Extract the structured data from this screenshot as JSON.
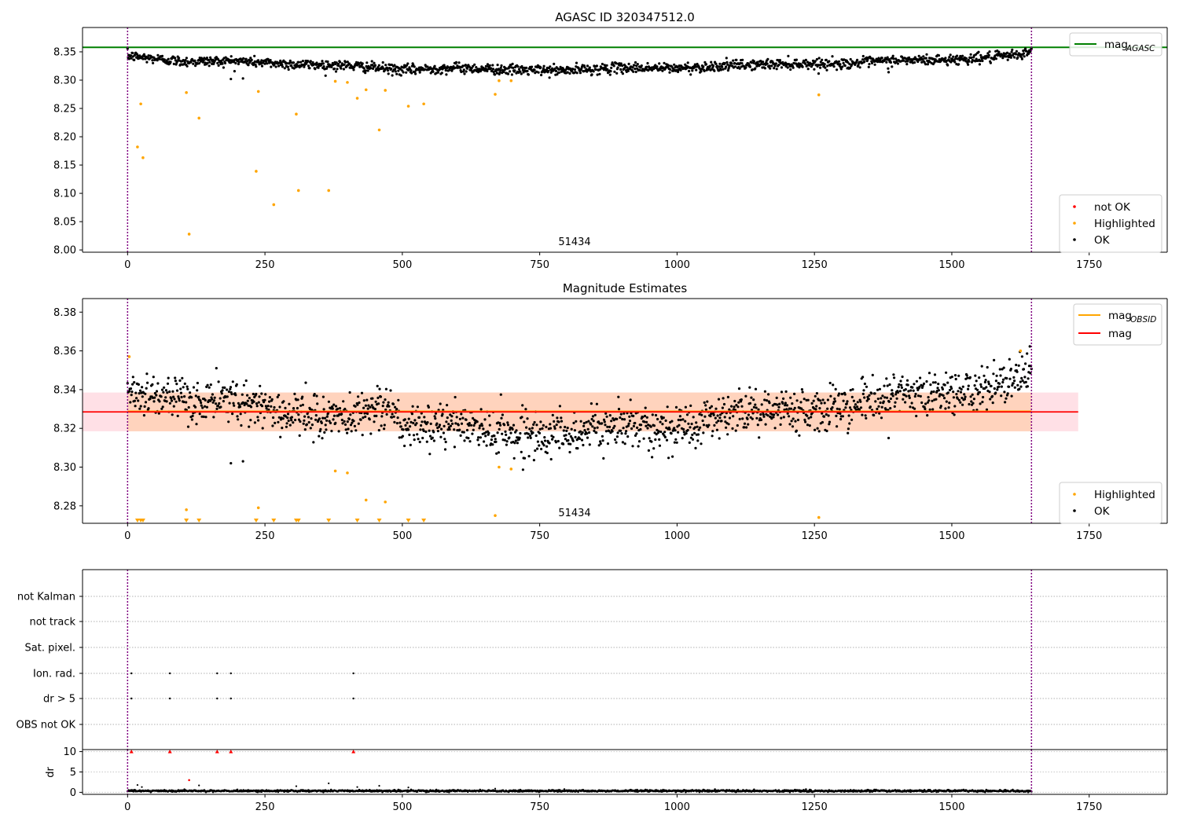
{
  "chart_data": [
    {
      "type": "scatter",
      "title": "AGASC ID 320347512.0",
      "xlim": [
        -82,
        1892
      ],
      "ylim": [
        7.996,
        8.393
      ],
      "x_ticks": [
        0,
        250,
        500,
        750,
        1000,
        1250,
        1500,
        1750
      ],
      "y_ticks": [
        8.0,
        8.05,
        8.1,
        8.15,
        8.2,
        8.25,
        8.3,
        8.35
      ],
      "obsid_label": "51434",
      "obsid_bounds": [
        0,
        1645
      ],
      "reference_line": {
        "name": "mag",
        "subscript": "AGASC",
        "value": 8.358,
        "color": "#008000"
      },
      "legend_lines": [
        {
          "name": "mag",
          "subscript": "AGASC",
          "color": "#008000"
        }
      ],
      "legend_points": [
        {
          "name": "not OK",
          "color": "#ff0000"
        },
        {
          "name": "Highlighted",
          "color": "#ffa500"
        },
        {
          "name": "OK",
          "color": "#000000"
        }
      ],
      "ok_trend": {
        "x": [
          0,
          100,
          200,
          300,
          400,
          500,
          600,
          700,
          800,
          900,
          1000,
          1100,
          1200,
          1300,
          1400,
          1500,
          1600,
          1645
        ],
        "y": [
          8.343,
          8.333,
          8.334,
          8.328,
          8.326,
          8.318,
          8.322,
          8.318,
          8.317,
          8.322,
          8.321,
          8.326,
          8.329,
          8.329,
          8.335,
          8.336,
          8.342,
          8.35
        ],
        "scatter": 0.0045,
        "count": 1640,
        "color": "#000000"
      },
      "ok_outliers": [
        {
          "x": 188,
          "y": 8.302
        },
        {
          "x": 210,
          "y": 8.303
        },
        {
          "x": 1385,
          "y": 8.314
        }
      ],
      "highlighted": [
        {
          "x": 18,
          "y": 8.182
        },
        {
          "x": 24,
          "y": 8.258
        },
        {
          "x": 28,
          "y": 8.163
        },
        {
          "x": 107,
          "y": 8.278
        },
        {
          "x": 112,
          "y": 8.028
        },
        {
          "x": 130,
          "y": 8.233
        },
        {
          "x": 234,
          "y": 8.139
        },
        {
          "x": 238,
          "y": 8.28
        },
        {
          "x": 266,
          "y": 8.08
        },
        {
          "x": 307,
          "y": 8.24
        },
        {
          "x": 311,
          "y": 8.105
        },
        {
          "x": 366,
          "y": 8.105
        },
        {
          "x": 378,
          "y": 8.298
        },
        {
          "x": 400,
          "y": 8.296
        },
        {
          "x": 418,
          "y": 8.268
        },
        {
          "x": 434,
          "y": 8.283
        },
        {
          "x": 458,
          "y": 8.212
        },
        {
          "x": 469,
          "y": 8.282
        },
        {
          "x": 511,
          "y": 8.254
        },
        {
          "x": 539,
          "y": 8.258
        },
        {
          "x": 669,
          "y": 8.275
        },
        {
          "x": 676,
          "y": 8.299
        },
        {
          "x": 698,
          "y": 8.299
        },
        {
          "x": 1258,
          "y": 8.274
        }
      ]
    },
    {
      "type": "scatter",
      "title": "Magnitude Estimates",
      "xlim": [
        -82,
        1892
      ],
      "ylim": [
        8.271,
        8.387
      ],
      "x_ticks": [
        0,
        250,
        500,
        750,
        1000,
        1250,
        1500,
        1750
      ],
      "y_ticks": [
        8.28,
        8.3,
        8.32,
        8.34,
        8.36,
        8.38
      ],
      "obsid_label": "51434",
      "obsid_bounds": [
        0,
        1645
      ],
      "mag_line": {
        "name": "mag",
        "value": 8.3285,
        "band": [
          8.3185,
          8.3385
        ],
        "color": "#ff0000",
        "band_color": "#ffdde3",
        "x_range": [
          -82,
          1730
        ]
      },
      "mag_obsid_line": {
        "name": "mag",
        "subscript": "OBSID",
        "value": 8.3288,
        "band": [
          8.3185,
          8.3385
        ],
        "color": "#ffa500",
        "band_color": "#ffd2b8",
        "x_range": [
          0,
          1645
        ]
      },
      "legend_lines": [
        {
          "name": "mag",
          "subscript": "OBSID",
          "color": "#ffa500"
        },
        {
          "name": "mag",
          "subscript": "",
          "color": "#ff0000"
        }
      ],
      "legend_points": [
        {
          "name": "Highlighted",
          "color": "#ffa500"
        },
        {
          "name": "OK",
          "color": "#000000"
        }
      ],
      "ok_trend": {
        "x": [
          0,
          100,
          200,
          300,
          400,
          440,
          480,
          500,
          600,
          700,
          800,
          900,
          1000,
          1100,
          1200,
          1300,
          1400,
          1500,
          1600,
          1645
        ],
        "y": [
          8.34,
          8.333,
          8.335,
          8.327,
          8.325,
          8.331,
          8.33,
          8.32,
          8.322,
          8.317,
          8.317,
          8.322,
          8.32,
          8.328,
          8.33,
          8.331,
          8.337,
          8.338,
          8.342,
          8.35
        ],
        "scatter": 0.0055,
        "count": 1640,
        "color": "#000000"
      },
      "ok_outliers": [
        {
          "x": 188,
          "y": 8.302
        },
        {
          "x": 210,
          "y": 8.303
        },
        {
          "x": 1385,
          "y": 8.315
        }
      ],
      "highlighted": [
        {
          "x": 3,
          "y": 8.357
        },
        {
          "x": 107,
          "y": 8.278
        },
        {
          "x": 238,
          "y": 8.279
        },
        {
          "x": 378,
          "y": 8.298
        },
        {
          "x": 400,
          "y": 8.297
        },
        {
          "x": 434,
          "y": 8.283
        },
        {
          "x": 469,
          "y": 8.282
        },
        {
          "x": 669,
          "y": 8.275
        },
        {
          "x": 676,
          "y": 8.3
        },
        {
          "x": 698,
          "y": 8.299
        },
        {
          "x": 1258,
          "y": 8.274
        },
        {
          "x": 1625,
          "y": 8.36
        }
      ],
      "below_axis_markers": {
        "x": [
          18,
          24,
          28,
          107,
          130,
          234,
          266,
          307,
          311,
          366,
          418,
          458,
          511,
          539
        ],
        "color": "#ffa500"
      }
    },
    {
      "type": "scatter",
      "title": "",
      "xlim": [
        -82,
        1892
      ],
      "x_ticks": [
        0,
        250,
        500,
        750,
        1000,
        1250,
        1500,
        1750
      ],
      "obsid_bounds": [
        0,
        1645
      ],
      "flag_rows": [
        "not Kalman",
        "not track",
        "Sat. pixel.",
        "Ion. rad.",
        "dr > 5",
        "OBS not OK"
      ],
      "flag_points": [
        {
          "row": "Ion. rad.",
          "x": [
            7,
            77,
            163,
            188,
            411
          ]
        },
        {
          "row": "dr > 5",
          "x": [
            7,
            77,
            163,
            188,
            411
          ]
        }
      ]
    },
    {
      "type": "scatter",
      "title": "",
      "ylabel": "dr",
      "xlim": [
        -82,
        1892
      ],
      "ylim": [
        -0.5,
        10.5
      ],
      "y_ticks": [
        0,
        5,
        10
      ],
      "x_ticks": [
        0,
        250,
        500,
        750,
        1000,
        1250,
        1500,
        1750
      ],
      "obsid_bounds": [
        0,
        1645
      ],
      "clipped_points": {
        "x": [
          7,
          77,
          163,
          188,
          411
        ],
        "y": 10,
        "color": "#ff0000"
      },
      "dr_points": [
        {
          "x": 18,
          "y": 1.8
        },
        {
          "x": 26,
          "y": 1.3
        },
        {
          "x": 112,
          "y": 3.0
        },
        {
          "x": 130,
          "y": 1.7
        },
        {
          "x": 307,
          "y": 1.5
        },
        {
          "x": 366,
          "y": 2.2
        },
        {
          "x": 418,
          "y": 1.3
        },
        {
          "x": 458,
          "y": 1.6
        },
        {
          "x": 511,
          "y": 1.2
        },
        {
          "x": 669,
          "y": 0.9
        }
      ],
      "dr_red_points": [
        {
          "x": 112,
          "y": 3.0
        }
      ],
      "baseline": {
        "value": 0.35,
        "scatter": 0.12,
        "count": 1640
      }
    }
  ]
}
